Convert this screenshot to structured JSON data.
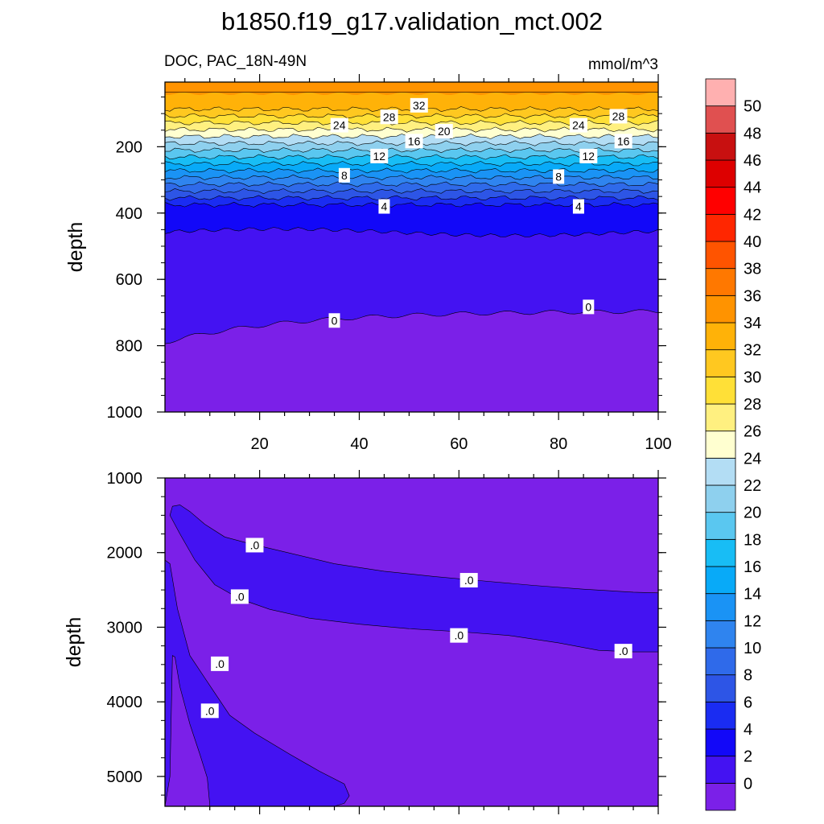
{
  "chart_data": {
    "type": "contour",
    "title": "b1850.f19_g17.validation_mct.002",
    "variable_label": "DOC, PAC_18N-49N",
    "units": "mmol/m^3",
    "colorbar": {
      "levels": [
        0,
        2,
        4,
        6,
        8,
        10,
        12,
        14,
        16,
        18,
        20,
        22,
        24,
        26,
        28,
        30,
        32,
        34,
        36,
        38,
        40,
        42,
        44,
        46,
        48,
        50
      ],
      "colors": [
        "#7b20e8",
        "#4412f2",
        "#1208f8",
        "#1a2cf2",
        "#2d55e6",
        "#2f6aea",
        "#2f84ef",
        "#1a93f5",
        "#08aaf8",
        "#18bdf5",
        "#5ac7f0",
        "#8ed0ee",
        "#b3ddf4",
        "#ffffd0",
        "#fff080",
        "#ffe037",
        "#ffc820",
        "#ffb208",
        "#ff9300",
        "#ff7800",
        "#ff5400",
        "#ff2600",
        "#ff0000",
        "#dd0000",
        "#c81010",
        "#e05050",
        "#ffb0b0"
      ]
    },
    "panels": [
      {
        "name": "upper",
        "ylabel": "depth",
        "xlim": [
          1,
          100
        ],
        "ylim": [
          1000,
          5
        ],
        "x_ticks": [
          20,
          40,
          60,
          80,
          100
        ],
        "y_ticks": [
          200,
          400,
          600,
          800,
          1000
        ],
        "contour_labels": [
          {
            "text": "32",
            "x": 52,
            "y": 75
          },
          {
            "text": "28",
            "x": 46,
            "y": 110
          },
          {
            "text": "28",
            "x": 92,
            "y": 108
          },
          {
            "text": "24",
            "x": 36,
            "y": 135
          },
          {
            "text": "24",
            "x": 84,
            "y": 135
          },
          {
            "text": "20",
            "x": 57,
            "y": 153
          },
          {
            "text": "16",
            "x": 51,
            "y": 183
          },
          {
            "text": "16",
            "x": 93,
            "y": 183
          },
          {
            "text": "12",
            "x": 44,
            "y": 228
          },
          {
            "text": "12",
            "x": 86,
            "y": 228
          },
          {
            "text": "8",
            "x": 37,
            "y": 286
          },
          {
            "text": "8",
            "x": 80,
            "y": 290
          },
          {
            "text": "4",
            "x": 45,
            "y": 380
          },
          {
            "text": "4",
            "x": 84,
            "y": 380
          },
          {
            "text": "0",
            "x": 35,
            "y": 724
          },
          {
            "text": "0",
            "x": 86,
            "y": 683
          }
        ]
      },
      {
        "name": "lower",
        "ylabel": "depth",
        "xlim": [
          1,
          100
        ],
        "ylim": [
          5400,
          1000
        ],
        "y_ticks": [
          1000,
          2000,
          3000,
          4000,
          5000
        ],
        "contour_labels": [
          {
            "text": ".0",
            "x": 19,
            "y": 1900
          },
          {
            "text": ".0",
            "x": 16,
            "y": 2590
          },
          {
            "text": ".0",
            "x": 12,
            "y": 3490
          },
          {
            "text": ".0",
            "x": 10,
            "y": 4120
          },
          {
            "text": ".0",
            "x": 62,
            "y": 2370
          },
          {
            "text": ".0",
            "x": 60,
            "y": 3110
          },
          {
            "text": ".0",
            "x": 93,
            "y": 3320
          }
        ]
      }
    ]
  }
}
